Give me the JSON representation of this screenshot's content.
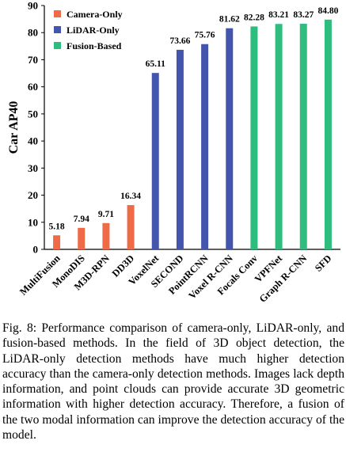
{
  "chart_data": {
    "type": "bar",
    "ylabel": "Car AP40",
    "xlabel": "",
    "ylim": [
      0,
      90
    ],
    "yticks": [
      0,
      10,
      20,
      30,
      40,
      50,
      60,
      70,
      80,
      90
    ],
    "grid": false,
    "legend_position": "top-left",
    "categories": [
      "MultiFusion",
      "MonoDIS",
      "M3D-RPN",
      "DD3D",
      "VoxelNet",
      "SECOND",
      "PointRCNN",
      "Voxel R-CNN",
      "Focals Conv",
      "VPFNet",
      "Graph R-CNN",
      "SFD"
    ],
    "values": [
      5.18,
      7.94,
      9.71,
      16.34,
      65.11,
      73.66,
      75.76,
      81.62,
      82.28,
      83.21,
      83.27,
      84.8
    ],
    "value_labels": [
      "5.18",
      "7.94",
      "9.71",
      "16.34",
      "65.11",
      "73.66",
      "75.76",
      "81.62",
      "82.28",
      "83.21",
      "83.27",
      "84.80"
    ],
    "groups": [
      "Camera-Only",
      "Camera-Only",
      "Camera-Only",
      "Camera-Only",
      "LiDAR-Only",
      "LiDAR-Only",
      "LiDAR-Only",
      "LiDAR-Only",
      "Fusion-Based",
      "Fusion-Based",
      "Fusion-Based",
      "Fusion-Based"
    ],
    "legend": [
      {
        "name": "Camera-Only",
        "color": "#ef6a47"
      },
      {
        "name": "LiDAR-Only",
        "color": "#4355ac"
      },
      {
        "name": "Fusion-Based",
        "color": "#2ebd7c"
      }
    ]
  },
  "caption": "Fig. 8: Performance comparison of camera-only, LiDAR-only, and fusion-based methods. In the field of 3D object detection, the LiDAR-only detection methods have much higher detection accuracy than the camera-only detection methods. Images lack depth information, and point clouds can provide accurate 3D geometric information with higher detection accuracy. Therefore, a fusion of the two modal information can improve the detection accuracy of the model."
}
